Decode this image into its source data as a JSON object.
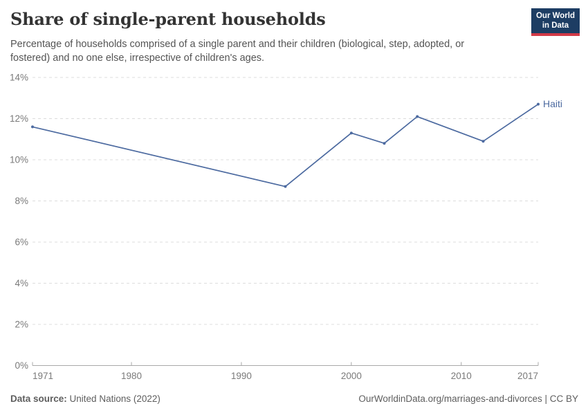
{
  "chart_data": {
    "type": "line",
    "title": "Share of single-parent households",
    "subtitle": "Percentage of households comprised of a single parent and their children (biological, step, adopted, or fostered) and no one else, irrespective of children's ages.",
    "series": [
      {
        "name": "Haiti",
        "color": "#4c6aa0",
        "points": [
          {
            "year": 1971,
            "value": 11.6
          },
          {
            "year": 1994,
            "value": 8.7
          },
          {
            "year": 2000,
            "value": 11.3
          },
          {
            "year": 2003,
            "value": 10.8
          },
          {
            "year": 2006,
            "value": 12.1
          },
          {
            "year": 2012,
            "value": 10.9
          },
          {
            "year": 2017,
            "value": 12.7
          }
        ]
      }
    ],
    "xlim": [
      1971,
      2017
    ],
    "ylim": [
      0,
      14
    ],
    "xticks": [
      1971,
      1980,
      1990,
      2000,
      2010,
      2017
    ],
    "yticks": [
      0,
      2,
      4,
      6,
      8,
      10,
      12,
      14
    ],
    "ytick_suffix": "%",
    "xlabel": "",
    "ylabel": "",
    "grid": "horizontal-dashed",
    "legend_position": "line-end-label"
  },
  "logo": {
    "line1": "Our World",
    "line2": "in Data",
    "bg_color": "#1d3d63",
    "accent_color": "#d23a47"
  },
  "footer": {
    "source_label": "Data source:",
    "source_value": "United Nations (2022)",
    "url": "OurWorldinData.org/marriages-and-divorces",
    "separator": " | ",
    "license": "CC BY"
  }
}
